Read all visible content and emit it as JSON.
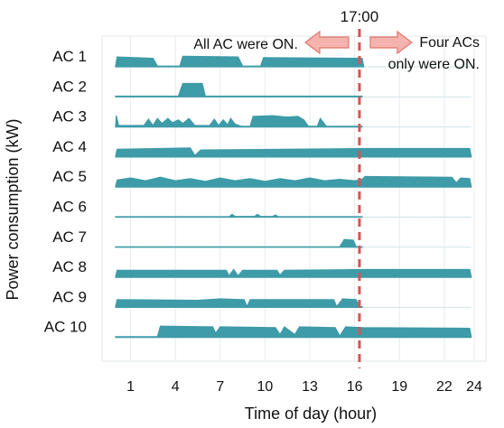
{
  "chart_data": {
    "type": "area",
    "ylabel": "Power consumption (kW)",
    "xlabel": "Time of day (hour)",
    "x_ticks": [
      1,
      4,
      7,
      10,
      13,
      16,
      19,
      22,
      24
    ],
    "x_range": [
      -0.5,
      24.5
    ],
    "color": "#3e9ba8",
    "marker": {
      "time": 16.5,
      "label": "17:00",
      "color": "#d9534f",
      "left_note": "All AC were ON.",
      "right_note_line1": "Four ACs",
      "right_note_line2": "only were ON."
    },
    "series": [
      {
        "name": "AC 1",
        "points": [
          [
            0,
            0.05
          ],
          [
            0.1,
            0.7
          ],
          [
            2.5,
            0.6
          ],
          [
            2.8,
            0.05
          ],
          [
            4.3,
            0.05
          ],
          [
            4.5,
            0.75
          ],
          [
            8.2,
            0.7
          ],
          [
            8.5,
            0.05
          ],
          [
            9.7,
            0.05
          ],
          [
            9.9,
            0.65
          ],
          [
            16.5,
            0.6
          ],
          [
            16.6,
            0.05
          ]
        ]
      },
      {
        "name": "AC 2",
        "points": [
          [
            0,
            0.05
          ],
          [
            4.2,
            0.05
          ],
          [
            4.5,
            0.95
          ],
          [
            5.8,
            0.95
          ],
          [
            6,
            0.05
          ],
          [
            16.5,
            0.05
          ]
        ]
      },
      {
        "name": "AC 3",
        "points": [
          [
            0,
            0.05
          ],
          [
            0.05,
            0.8
          ],
          [
            0.2,
            0.1
          ],
          [
            1.9,
            0.1
          ],
          [
            2.2,
            0.55
          ],
          [
            2.5,
            0.1
          ],
          [
            2.8,
            0.6
          ],
          [
            3.1,
            0.25
          ],
          [
            3.5,
            0.6
          ],
          [
            3.8,
            0.3
          ],
          [
            4.2,
            0.5
          ],
          [
            4.5,
            0.25
          ],
          [
            4.9,
            0.6
          ],
          [
            5.3,
            0.1
          ],
          [
            6.3,
            0.1
          ],
          [
            6.6,
            0.55
          ],
          [
            6.9,
            0.1
          ],
          [
            7.2,
            0.5
          ],
          [
            7.5,
            0.15
          ],
          [
            7.7,
            0.6
          ],
          [
            8.0,
            0.2
          ],
          [
            8.4,
            0.05
          ],
          [
            9.0,
            0.05
          ],
          [
            9.2,
            0.75
          ],
          [
            10.5,
            0.8
          ],
          [
            11.5,
            0.7
          ],
          [
            12.2,
            0.75
          ],
          [
            12.6,
            0.5
          ],
          [
            12.9,
            0.05
          ],
          [
            13.5,
            0.05
          ],
          [
            13.7,
            0.6
          ],
          [
            14.1,
            0.05
          ],
          [
            16.5,
            0.05
          ]
        ]
      },
      {
        "name": "AC 4",
        "points": [
          [
            0,
            0.05
          ],
          [
            0.1,
            0.55
          ],
          [
            5.0,
            0.65
          ],
          [
            5.3,
            0.1
          ],
          [
            5.7,
            0.5
          ],
          [
            16.5,
            0.6
          ],
          [
            23.7,
            0.6
          ],
          [
            23.8,
            0.05
          ]
        ]
      },
      {
        "name": "AC 5",
        "points": [
          [
            0,
            0.05
          ],
          [
            0.1,
            0.5
          ],
          [
            1.0,
            0.65
          ],
          [
            2.0,
            0.45
          ],
          [
            3.0,
            0.7
          ],
          [
            4.0,
            0.45
          ],
          [
            5.0,
            0.6
          ],
          [
            6.0,
            0.4
          ],
          [
            7.0,
            0.65
          ],
          [
            8.0,
            0.45
          ],
          [
            9.0,
            0.6
          ],
          [
            10.0,
            0.4
          ],
          [
            11.0,
            0.6
          ],
          [
            12.0,
            0.45
          ],
          [
            13.0,
            0.65
          ],
          [
            14.0,
            0.45
          ],
          [
            15.0,
            0.55
          ],
          [
            16.0,
            0.45
          ],
          [
            16.5,
            0.55
          ],
          [
            16.7,
            0.75
          ],
          [
            22.5,
            0.7
          ],
          [
            22.8,
            0.3
          ],
          [
            23.1,
            0.65
          ],
          [
            23.7,
            0.6
          ],
          [
            23.8,
            0.05
          ]
        ]
      },
      {
        "name": "AC 6",
        "points": [
          [
            0,
            0.03
          ],
          [
            7.6,
            0.03
          ],
          [
            7.8,
            0.2
          ],
          [
            8.0,
            0.05
          ],
          [
            9.3,
            0.05
          ],
          [
            9.5,
            0.2
          ],
          [
            9.7,
            0.05
          ],
          [
            10.5,
            0.05
          ],
          [
            10.7,
            0.15
          ],
          [
            10.9,
            0.03
          ],
          [
            16.5,
            0.03
          ]
        ]
      },
      {
        "name": "AC 7",
        "points": [
          [
            0,
            0.03
          ],
          [
            15.0,
            0.03
          ],
          [
            15.3,
            0.55
          ],
          [
            15.9,
            0.5
          ],
          [
            16.1,
            0.03
          ],
          [
            16.5,
            0.03
          ]
        ]
      },
      {
        "name": "AC 8",
        "points": [
          [
            0,
            0.05
          ],
          [
            0.1,
            0.5
          ],
          [
            7.4,
            0.5
          ],
          [
            7.6,
            0.1
          ],
          [
            7.9,
            0.55
          ],
          [
            8.2,
            0.1
          ],
          [
            8.5,
            0.5
          ],
          [
            10.8,
            0.5
          ],
          [
            11.0,
            0.15
          ],
          [
            11.3,
            0.5
          ],
          [
            16.5,
            0.55
          ],
          [
            23.7,
            0.55
          ],
          [
            23.8,
            0.05
          ]
        ]
      },
      {
        "name": "AC 9",
        "points": [
          [
            0,
            0.05
          ],
          [
            0.1,
            0.55
          ],
          [
            5.5,
            0.5
          ],
          [
            7.0,
            0.6
          ],
          [
            8.6,
            0.55
          ],
          [
            8.8,
            0.05
          ],
          [
            9.0,
            0.55
          ],
          [
            14.6,
            0.55
          ],
          [
            14.8,
            0.05
          ],
          [
            15.2,
            0.6
          ],
          [
            16.1,
            0.55
          ],
          [
            16.3,
            0.05
          ],
          [
            16.5,
            0.05
          ]
        ]
      },
      {
        "name": "AC 10",
        "points": [
          [
            0,
            0.05
          ],
          [
            2.8,
            0.05
          ],
          [
            3.0,
            0.8
          ],
          [
            6.5,
            0.75
          ],
          [
            6.7,
            0.3
          ],
          [
            7.0,
            0.75
          ],
          [
            10.7,
            0.7
          ],
          [
            11.0,
            0.2
          ],
          [
            11.3,
            0.75
          ],
          [
            12.0,
            0.2
          ],
          [
            12.3,
            0.75
          ],
          [
            14.7,
            0.7
          ],
          [
            15.0,
            0.1
          ],
          [
            15.4,
            0.75
          ],
          [
            16.5,
            0.7
          ],
          [
            23.7,
            0.65
          ],
          [
            23.8,
            0.05
          ]
        ]
      }
    ]
  }
}
